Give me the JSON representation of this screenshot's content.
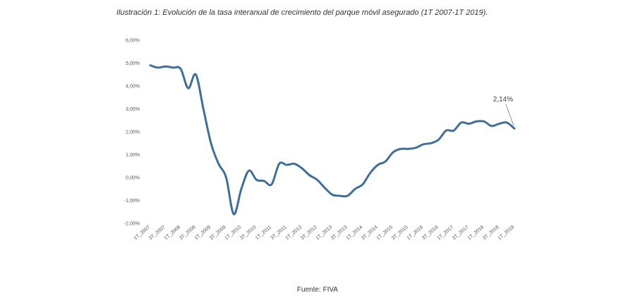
{
  "title": "Ilustración 1: Evolución de la tasa interanual de crecimiento del parque móvil asegurado (1T 2007-1T 2019).",
  "source": "Fuente: FIVA",
  "chart_data": {
    "type": "line",
    "title": "Ilustración 1: Evolución de la tasa interanual de crecimiento del parque móvil asegurado (1T 2007-1T 2019).",
    "xlabel": "",
    "ylabel": "",
    "ylim": [
      -2,
      6
    ],
    "grid": false,
    "legend": "none",
    "line_color": "#3f6e9c",
    "y_ticks": [
      {
        "value": 6,
        "label": "6,00%"
      },
      {
        "value": 5,
        "label": "5,00%"
      },
      {
        "value": 4,
        "label": "4,00%"
      },
      {
        "value": 3,
        "label": "3,00%"
      },
      {
        "value": 2,
        "label": "2,00%"
      },
      {
        "value": 1,
        "label": "1,00%"
      },
      {
        "value": 0,
        "label": "0,00%"
      },
      {
        "value": -1,
        "label": "-1,00%"
      },
      {
        "value": -2,
        "label": "-2,00%"
      }
    ],
    "x_ticks": [
      {
        "index": 0,
        "label": "1T_2007"
      },
      {
        "index": 2,
        "label": "3T_2007"
      },
      {
        "index": 4,
        "label": "1T_2008"
      },
      {
        "index": 6,
        "label": "3T_2008"
      },
      {
        "index": 8,
        "label": "1T_2009"
      },
      {
        "index": 10,
        "label": "3T_2009"
      },
      {
        "index": 12,
        "label": "1T_2010"
      },
      {
        "index": 14,
        "label": "3T_2010"
      },
      {
        "index": 16,
        "label": "1T_2011"
      },
      {
        "index": 18,
        "label": "3T_2011"
      },
      {
        "index": 20,
        "label": "1T_2012"
      },
      {
        "index": 22,
        "label": "3T_2012"
      },
      {
        "index": 24,
        "label": "1T_2013"
      },
      {
        "index": 26,
        "label": "3T_2013"
      },
      {
        "index": 28,
        "label": "1T_2014"
      },
      {
        "index": 30,
        "label": "3T_2014"
      },
      {
        "index": 32,
        "label": "1T_2015"
      },
      {
        "index": 34,
        "label": "3T_2015"
      },
      {
        "index": 36,
        "label": "1T_2016"
      },
      {
        "index": 38,
        "label": "3T_2016"
      },
      {
        "index": 40,
        "label": "1T_2017"
      },
      {
        "index": 42,
        "label": "3T_2017"
      },
      {
        "index": 44,
        "label": "1T_2018"
      },
      {
        "index": 46,
        "label": "3T_2018"
      },
      {
        "index": 48,
        "label": "1T_2019"
      }
    ],
    "series": [
      {
        "values": [
          4.9,
          4.8,
          4.85,
          4.8,
          4.75,
          3.9,
          4.5,
          3.0,
          1.5,
          0.6,
          0.0,
          -1.6,
          -0.5,
          0.3,
          -0.1,
          -0.15,
          -0.3,
          0.6,
          0.55,
          0.6,
          0.4,
          0.1,
          -0.1,
          -0.45,
          -0.75,
          -0.8,
          -0.8,
          -0.5,
          -0.3,
          0.2,
          0.55,
          0.7,
          1.1,
          1.25,
          1.25,
          1.3,
          1.45,
          1.5,
          1.65,
          2.05,
          2.05,
          2.4,
          2.35,
          2.45,
          2.45,
          2.25,
          2.35,
          2.4,
          2.14
        ]
      }
    ],
    "annotations": [
      {
        "index": 48,
        "text": "2,14%"
      }
    ]
  }
}
